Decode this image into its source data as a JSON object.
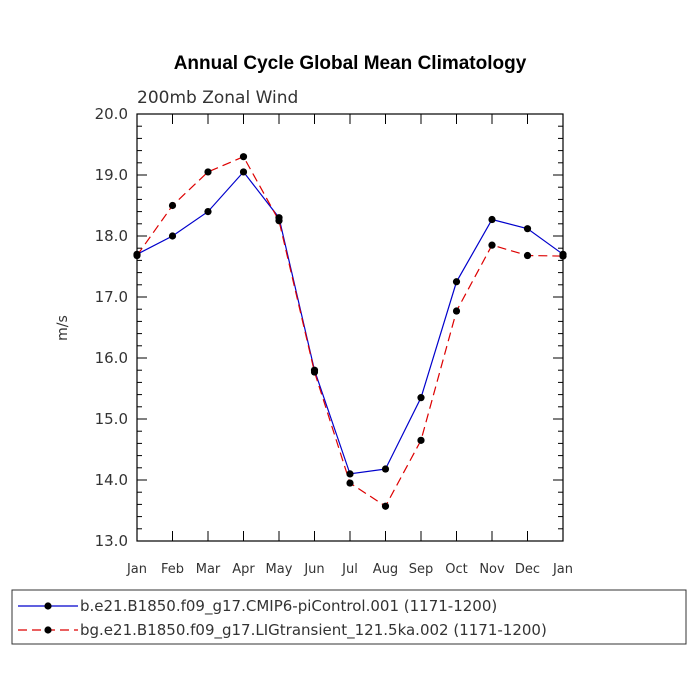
{
  "chart_data": {
    "type": "line",
    "title": "Annual Cycle Global Mean Climatology",
    "subtitle": "200mb Zonal Wind",
    "ylabel": "m/s",
    "xlabel": "",
    "ylim": [
      13.0,
      20.0
    ],
    "yticks": [
      "13.0",
      "14.0",
      "15.0",
      "16.0",
      "17.0",
      "18.0",
      "19.0",
      "20.0"
    ],
    "categories": [
      "Jan",
      "Feb",
      "Mar",
      "Apr",
      "May",
      "Jun",
      "Jul",
      "Aug",
      "Sep",
      "Oct",
      "Nov",
      "Dec",
      "Jan"
    ],
    "series": [
      {
        "name": "b.e21.B1850.f09_g17.CMIP6-piControl.001 (1171-1200)",
        "color": "#0000cc",
        "dash": "solid",
        "values": [
          17.7,
          18.0,
          18.4,
          19.05,
          18.3,
          15.8,
          14.1,
          14.18,
          15.35,
          17.25,
          18.27,
          18.12,
          17.7
        ]
      },
      {
        "name": "bg.e21.B1850.f09_g17.LIGtransient_121.5ka.002 (1171-1200)",
        "color": "#dd0000",
        "dash": "dashed",
        "values": [
          17.68,
          18.5,
          19.05,
          19.3,
          18.25,
          15.77,
          13.95,
          13.57,
          14.65,
          16.77,
          17.85,
          17.68,
          17.67
        ]
      }
    ],
    "marker": "filled-circle",
    "marker_color": "#000000",
    "grid": false,
    "legend_position": "bottom"
  }
}
